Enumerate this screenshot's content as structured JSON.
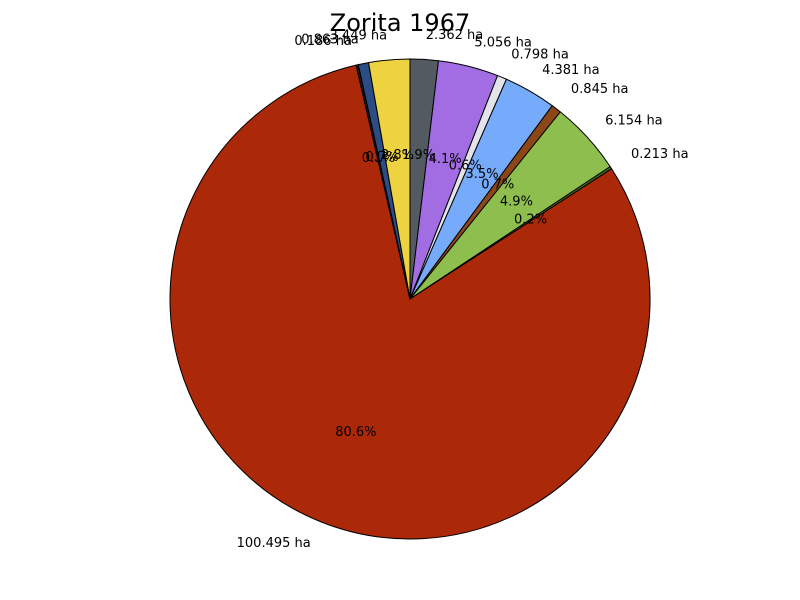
{
  "chart_data": {
    "type": "pie",
    "title": "Zorita 1967",
    "slices": [
      {
        "label": "2.362 ha",
        "value": 2.362,
        "pct_label": "1.9%",
        "color": "#545a62"
      },
      {
        "label": "5.056 ha",
        "value": 5.056,
        "pct_label": "4.1%",
        "color": "#a26ce2"
      },
      {
        "label": "0.798 ha",
        "value": 0.798,
        "pct_label": "0.6%",
        "color": "#e3e3ea"
      },
      {
        "label": "4.381 ha",
        "value": 4.381,
        "pct_label": "3.5%",
        "color": "#76aafa"
      },
      {
        "label": "0.845 ha",
        "value": 0.845,
        "pct_label": "0.7%",
        "color": "#8c4717"
      },
      {
        "label": "6.154 ha",
        "value": 6.154,
        "pct_label": "4.9%",
        "color": "#8ebf4e"
      },
      {
        "label": "0.213 ha",
        "value": 0.213,
        "pct_label": "0.2%",
        "color": "#4b6a23"
      },
      {
        "label": "100.495 ha",
        "value": 100.495,
        "pct_label": "80.6%",
        "color": "#ab2808"
      },
      {
        "label": "0.186 ha",
        "value": 0.186,
        "pct_label": "0.1%",
        "color": "#1a1a1a"
      },
      {
        "label": "0.863 ha",
        "value": 0.863,
        "pct_label": "0.7%",
        "color": "#2c4c85"
      },
      {
        "label": "3.449 ha",
        "value": 3.449,
        "pct_label": "2.8%",
        "color": "#eed341"
      }
    ],
    "start_angle_deg": 90,
    "direction": "clockwise"
  }
}
